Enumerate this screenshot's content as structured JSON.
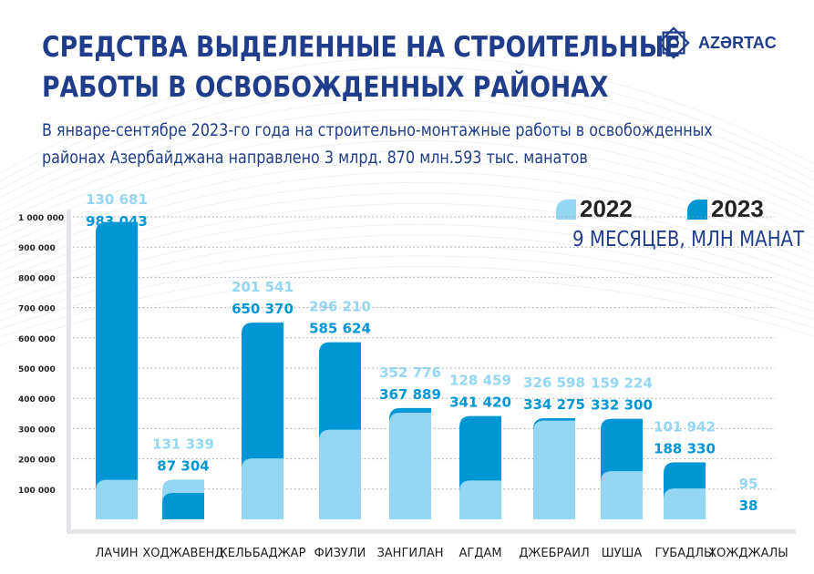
{
  "header": {
    "title_line1": "СРЕДСТВА ВЫДЕЛЕННЫЕ  НА СТРОИТЕЛЬНЫЕ",
    "title_line2": "РАБОТЫ В ОСВОБОЖДЕННЫХ РАЙОНАХ",
    "subtitle_line1": "В январе-сентябре 2023-го года на строительно-монтажные работы в освобожденных",
    "subtitle_line2": "районах Азербайджана направлено 3 млрд. 870 млн.593 тыс. манатов",
    "logo_text": "AZƏRTAC"
  },
  "colors": {
    "series_2022": "#94d6f3",
    "series_2023": "#0096d6",
    "title": "#1f3d8a"
  },
  "chart_data": {
    "type": "bar",
    "title": "",
    "unit_label": "9 МЕСЯЦЕВ, МЛН МАНАТ",
    "categories": [
      "ЛАЧИН",
      "ХОДЖАВЕНД",
      "КЕЛЬБАДЖАР",
      "ФИЗУЛИ",
      "ЗАНГИЛАН",
      "АГДАМ",
      "ДЖЕБРАИЛ",
      "ШУША",
      "ГУБАДЛЫ",
      "ХОЖДЖАЛЫ"
    ],
    "series": [
      {
        "name": "2022",
        "values": [
          130681,
          131339,
          201541,
          296210,
          352776,
          128459,
          326598,
          159224,
          101942,
          95
        ],
        "labels": [
          "130 681",
          "131 339",
          "201 541",
          "296 210",
          "352 776",
          "128 459",
          "326 598",
          "159 224",
          "101 942",
          "95"
        ]
      },
      {
        "name": "2023",
        "values": [
          983043,
          87304,
          650370,
          585624,
          367889,
          341420,
          334275,
          332300,
          188330,
          38
        ],
        "labels": [
          "983 043",
          "87 304",
          "650 370",
          "585 624",
          "367 889",
          "341 420",
          "334 275",
          "332 300",
          "188 330",
          "38"
        ]
      }
    ],
    "yticks": [
      100000,
      200000,
      300000,
      400000,
      500000,
      600000,
      700000,
      800000,
      900000,
      1000000
    ],
    "ytick_labels": [
      "100 000",
      "200 000",
      "300 000",
      "400 000",
      "500 000",
      "600 000",
      "700 000",
      "800 000",
      "900 000",
      "1 000 000"
    ],
    "ylim": [
      0,
      1000000
    ],
    "grid": true,
    "legend": "top-right"
  }
}
